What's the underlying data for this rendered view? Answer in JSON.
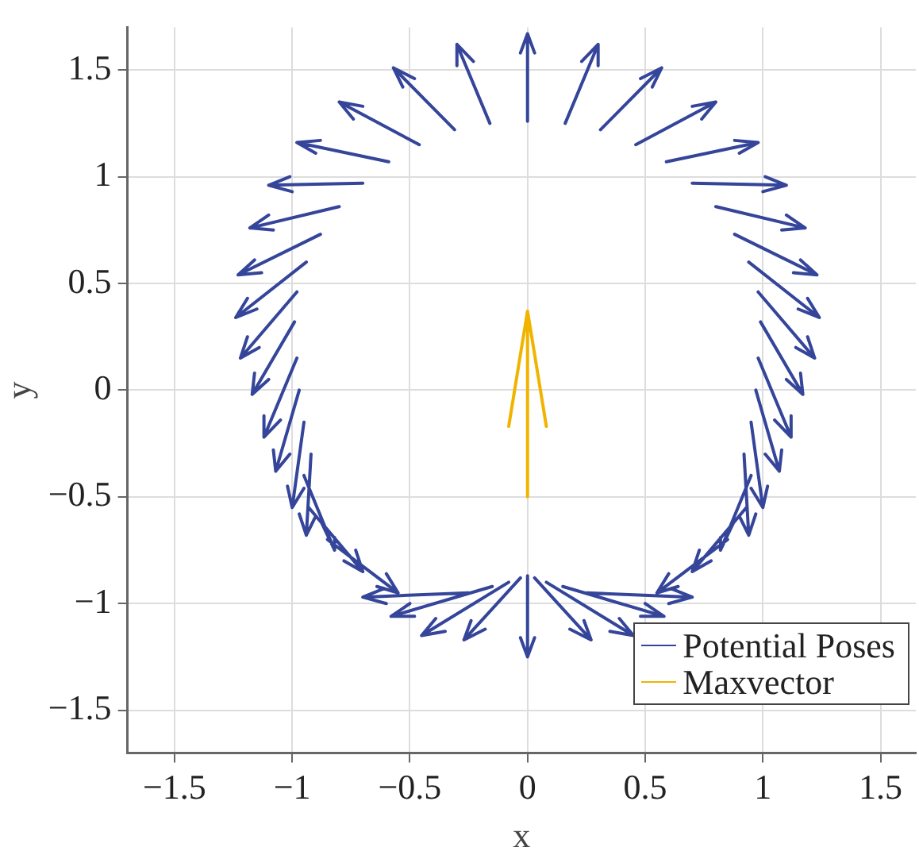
{
  "chart_data": {
    "type": "line",
    "xlabel": "x",
    "ylabel": "y",
    "xlim": [
      -1.7,
      1.65
    ],
    "ylim": [
      -1.7,
      1.7
    ],
    "xticks": [
      -1.5,
      -1,
      -0.5,
      0,
      0.5,
      1,
      1.5
    ],
    "yticks": [
      -1.5,
      -1,
      -0.5,
      0,
      0.5,
      1,
      1.5
    ],
    "grid": true,
    "legend": "bottom right",
    "marker": "none",
    "line_style": "solid",
    "series": [
      {
        "name": "Potential Poses",
        "color": "#34459a",
        "x": [
          0.03,
          0,
          -0.03,
          null,
          0,
          0,
          null,
          0.3,
          0.3,
          0.23,
          null,
          0.16,
          0.3,
          null,
          0.53,
          0.57,
          0.48,
          null,
          0.31,
          0.57,
          null,
          0.74,
          0.8,
          0.7,
          null,
          0.46,
          0.8,
          null,
          0.9,
          0.98,
          0.88,
          null,
          0.59,
          0.98,
          null,
          1.0,
          1.1,
          1.01,
          null,
          0.7,
          1.1,
          null,
          1.08,
          1.18,
          1.1,
          null,
          0.8,
          1.18,
          null,
          1.13,
          1.23,
          1.16,
          null,
          0.88,
          1.23,
          null,
          1.15,
          1.24,
          1.19,
          null,
          0.94,
          1.24,
          null,
          1.14,
          1.22,
          1.19,
          null,
          0.98,
          1.22,
          null,
          1.1,
          1.17,
          1.16,
          null,
          0.99,
          1.17,
          null,
          1.05,
          1.12,
          1.12,
          null,
          0.98,
          1.12,
          null,
          1.01,
          1.07,
          1.08,
          null,
          0.97,
          1.07,
          null,
          0.95,
          1.0,
          1.02,
          null,
          0.95,
          1.0,
          null,
          0.9,
          0.94,
          0.97,
          null,
          0.92,
          0.94,
          null,
          0.82,
          0.82,
          0.88,
          null,
          0.95,
          0.82,
          null,
          0.73,
          0.7,
          0.78,
          null,
          0.93,
          0.7,
          null,
          0.6,
          0.55,
          0.64,
          null,
          0.85,
          0.55,
          null,
          0.6,
          0.7,
          0.61,
          null,
          0.25,
          0.7,
          null,
          0.48,
          0.58,
          0.5,
          null,
          0.15,
          0.58,
          null,
          0.35,
          0.45,
          0.39,
          null,
          0.08,
          0.45,
          null,
          0.18,
          0.27,
          0.24,
          null,
          0.03,
          0.27,
          null,
          0.03,
          0,
          -0.03,
          null,
          0,
          0,
          null,
          -0.18,
          -0.27,
          -0.24,
          null,
          -0.03,
          -0.27,
          null,
          -0.35,
          -0.45,
          -0.39,
          null,
          -0.08,
          -0.45,
          null,
          -0.48,
          -0.58,
          -0.5,
          null,
          -0.15,
          -0.58,
          null,
          -0.6,
          -0.7,
          -0.61,
          null,
          -0.25,
          -0.7,
          null,
          -0.6,
          -0.55,
          -0.64,
          null,
          -0.85,
          -0.55,
          null,
          -0.73,
          -0.7,
          -0.78,
          null,
          -0.93,
          -0.7,
          null,
          -0.82,
          -0.82,
          -0.88,
          null,
          -0.95,
          -0.82,
          null,
          -0.9,
          -0.94,
          -0.97,
          null,
          -0.92,
          -0.94,
          null,
          -0.95,
          -1.0,
          -1.02,
          null,
          -0.95,
          -1.0,
          null,
          -1.01,
          -1.07,
          -1.08,
          null,
          -0.97,
          -1.07,
          null,
          -1.05,
          -1.12,
          -1.12,
          null,
          -0.98,
          -1.12,
          null,
          -1.1,
          -1.17,
          -1.16,
          null,
          -0.99,
          -1.17,
          null,
          -1.14,
          -1.22,
          -1.19,
          null,
          -0.98,
          -1.22,
          null,
          -1.15,
          -1.24,
          -1.19,
          null,
          -0.94,
          -1.24,
          null,
          -1.13,
          -1.23,
          -1.16,
          null,
          -0.88,
          -1.23,
          null,
          -1.08,
          -1.18,
          -1.1,
          null,
          -0.8,
          -1.18,
          null,
          -1.0,
          -1.1,
          -1.01,
          null,
          -0.7,
          -1.1,
          null,
          -0.9,
          -0.98,
          -0.88,
          null,
          -0.59,
          -0.98,
          null,
          -0.74,
          -0.8,
          -0.7,
          null,
          -0.46,
          -0.8,
          null,
          -0.53,
          -0.57,
          -0.48,
          null,
          -0.31,
          -0.57,
          null,
          -0.3,
          -0.3,
          -0.23,
          null,
          -0.16,
          -0.3
        ],
        "values": [
          1.58,
          1.67,
          1.58,
          null,
          1.26,
          1.67,
          null,
          1.52,
          1.62,
          1.54,
          null,
          1.25,
          1.62,
          null,
          1.42,
          1.51,
          1.46,
          null,
          1.22,
          1.51,
          null,
          1.27,
          1.35,
          1.33,
          null,
          1.15,
          1.35,
          null,
          1.11,
          1.16,
          1.17,
          null,
          1.07,
          1.16,
          null,
          0.93,
          0.96,
          1.0,
          null,
          0.97,
          0.96,
          null,
          0.75,
          0.76,
          0.82,
          null,
          0.86,
          0.76,
          null,
          0.55,
          0.54,
          0.61,
          null,
          0.73,
          0.54,
          null,
          0.38,
          0.34,
          0.43,
          null,
          0.6,
          0.34,
          null,
          0.2,
          0.15,
          0.25,
          null,
          0.46,
          0.15,
          null,
          0.05,
          -0.02,
          0.08,
          null,
          0.32,
          -0.02,
          null,
          -0.14,
          -0.22,
          -0.12,
          null,
          0.15,
          -0.22,
          null,
          -0.3,
          -0.38,
          -0.28,
          null,
          0,
          -0.38,
          null,
          -0.46,
          -0.55,
          -0.45,
          null,
          -0.15,
          -0.55,
          null,
          -0.59,
          -0.68,
          -0.58,
          null,
          -0.3,
          -0.68,
          null,
          -0.69,
          -0.75,
          -0.61,
          null,
          -0.4,
          -0.75,
          null,
          -0.75,
          -0.85,
          -0.8,
          null,
          -0.55,
          -0.85,
          null,
          -0.86,
          -0.95,
          -0.92,
          null,
          -0.7,
          -0.95,
          null,
          -1.0,
          -0.97,
          -0.93,
          null,
          -0.95,
          -0.97,
          null,
          -1.06,
          -1.06,
          -1.0,
          null,
          -0.92,
          -1.06,
          null,
          -1.13,
          -1.15,
          -1.07,
          null,
          -0.9,
          -1.15,
          null,
          -1.12,
          -1.17,
          -1.08,
          null,
          -0.88,
          -1.17,
          null,
          -1.16,
          -1.25,
          -1.16,
          null,
          -0.87,
          -1.25,
          null,
          -1.12,
          -1.17,
          -1.08,
          null,
          -0.88,
          -1.17,
          null,
          -1.13,
          -1.15,
          -1.07,
          null,
          -0.9,
          -1.15,
          null,
          -1.06,
          -1.06,
          -1.0,
          null,
          -0.92,
          -1.06,
          null,
          -1.0,
          -0.97,
          -0.93,
          null,
          -0.95,
          -0.97,
          null,
          -0.86,
          -0.95,
          -0.92,
          null,
          -0.7,
          -0.95,
          null,
          -0.75,
          -0.85,
          -0.8,
          null,
          -0.55,
          -0.85,
          null,
          -0.69,
          -0.75,
          -0.61,
          null,
          -0.4,
          -0.75,
          null,
          -0.59,
          -0.68,
          -0.58,
          null,
          -0.3,
          -0.68,
          null,
          -0.46,
          -0.55,
          -0.45,
          null,
          -0.15,
          -0.55,
          null,
          -0.3,
          -0.38,
          -0.28,
          null,
          0,
          -0.38,
          null,
          -0.14,
          -0.22,
          -0.12,
          null,
          0.15,
          -0.22,
          null,
          0.05,
          -0.02,
          0.08,
          null,
          0.32,
          -0.02,
          null,
          0.2,
          0.15,
          0.25,
          null,
          0.46,
          0.15,
          null,
          0.38,
          0.34,
          0.43,
          null,
          0.6,
          0.34,
          null,
          0.55,
          0.54,
          0.61,
          null,
          0.73,
          0.54,
          null,
          0.75,
          0.76,
          0.82,
          null,
          0.86,
          0.76,
          null,
          0.93,
          0.96,
          1.0,
          null,
          0.97,
          0.96,
          null,
          1.11,
          1.16,
          1.17,
          null,
          1.07,
          1.16,
          null,
          1.27,
          1.35,
          1.33,
          null,
          1.15,
          1.35,
          null,
          1.42,
          1.51,
          1.46,
          null,
          1.22,
          1.51,
          null,
          1.52,
          1.62,
          1.54,
          null,
          1.25,
          1.62
        ]
      },
      {
        "name": "Maxvector",
        "color": "#f0b400",
        "x": [
          -0.08,
          0,
          0.08,
          null,
          0,
          0
        ],
        "values": [
          -0.17,
          0.37,
          -0.17,
          null,
          -0.5,
          0.37
        ]
      }
    ]
  }
}
